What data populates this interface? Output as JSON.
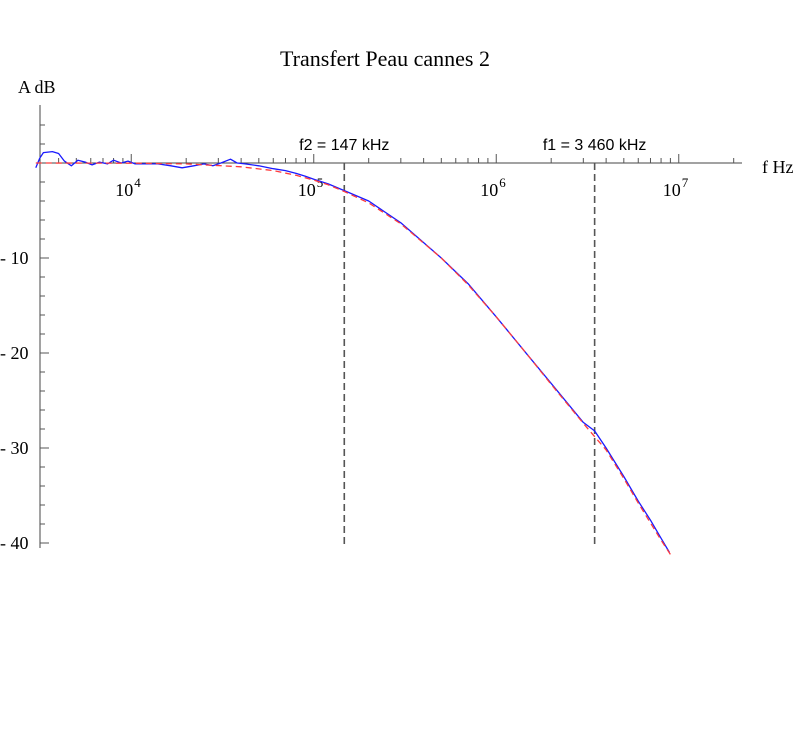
{
  "chart_data": {
    "type": "line",
    "title": "Transfert Peau cannes 2",
    "xlabel": "f Hz",
    "ylabel": "A dB",
    "xscale": "log",
    "xlim": [
      3000,
      20000000
    ],
    "ylim": [
      -41,
      6
    ],
    "grid": false,
    "x_tick_labels": [
      {
        "value": 10000,
        "base": "10",
        "exp": "4"
      },
      {
        "value": 100000,
        "base": "10",
        "exp": "5"
      },
      {
        "value": 1000000,
        "base": "10",
        "exp": "6"
      },
      {
        "value": 10000000,
        "base": "10",
        "exp": "7"
      }
    ],
    "y_ticks": [
      {
        "value": -10,
        "label": "- 10"
      },
      {
        "value": -20,
        "label": "- 20"
      },
      {
        "value": -30,
        "label": "- 30"
      },
      {
        "value": -40,
        "label": "- 40"
      }
    ],
    "vlines": [
      {
        "x": 147000,
        "label": "f2 = 147 kHz",
        "color": "#555555",
        "style": "dashed"
      },
      {
        "x": 3460000,
        "label": "f1 = 3 460 kHz",
        "color": "#555555",
        "style": "dashed"
      }
    ],
    "series": [
      {
        "color": "#1a1aff",
        "style": "solid",
        "points": [
          [
            3000,
            -0.5
          ],
          [
            3150,
            0.5
          ],
          [
            3300,
            1.1
          ],
          [
            3700,
            1.2
          ],
          [
            4000,
            1.0
          ],
          [
            4300,
            0.2
          ],
          [
            4700,
            -0.3
          ],
          [
            5100,
            0.3
          ],
          [
            5600,
            0.1
          ],
          [
            6100,
            -0.2
          ],
          [
            6700,
            0.1
          ],
          [
            7400,
            -0.1
          ],
          [
            8000,
            0.3
          ],
          [
            8800,
            0.0
          ],
          [
            9600,
            0.2
          ],
          [
            10500,
            -0.1
          ],
          [
            12000,
            -0.1
          ],
          [
            14000,
            -0.1
          ],
          [
            16500,
            -0.3
          ],
          [
            19000,
            -0.5
          ],
          [
            22000,
            -0.3
          ],
          [
            25000,
            -0.1
          ],
          [
            28000,
            -0.3
          ],
          [
            31000,
            0.0
          ],
          [
            35000,
            0.4
          ],
          [
            38000,
            0.0
          ],
          [
            42000,
            -0.1
          ],
          [
            50000,
            -0.3
          ],
          [
            60000,
            -0.6
          ],
          [
            70000,
            -0.8
          ],
          [
            80000,
            -1.1
          ],
          [
            90000,
            -1.4
          ],
          [
            100000,
            -1.7
          ],
          [
            120000,
            -2.2
          ],
          [
            147000,
            -2.9
          ],
          [
            200000,
            -4.0
          ],
          [
            300000,
            -6.3
          ],
          [
            500000,
            -10.0
          ],
          [
            700000,
            -12.7
          ],
          [
            1000000,
            -16.2
          ],
          [
            1500000,
            -20.3
          ],
          [
            2000000,
            -23.2
          ],
          [
            3000000,
            -27.3
          ],
          [
            3460000,
            -28.2
          ],
          [
            4000000,
            -30.0
          ],
          [
            5000000,
            -33.0
          ],
          [
            6000000,
            -35.6
          ],
          [
            7000000,
            -37.6
          ],
          [
            8000000,
            -39.5
          ],
          [
            8900000,
            -41.0
          ]
        ]
      },
      {
        "color": "#ff3b3b",
        "style": "dashed",
        "points": [
          [
            3000,
            0.0
          ],
          [
            10000,
            -0.02
          ],
          [
            20000,
            -0.1
          ],
          [
            40000,
            -0.4
          ],
          [
            60000,
            -0.8
          ],
          [
            80000,
            -1.3
          ],
          [
            100000,
            -1.8
          ],
          [
            120000,
            -2.3
          ],
          [
            147000,
            -3.0
          ],
          [
            200000,
            -4.2
          ],
          [
            300000,
            -6.4
          ],
          [
            500000,
            -10.0
          ],
          [
            700000,
            -12.8
          ],
          [
            1000000,
            -16.2
          ],
          [
            1500000,
            -20.3
          ],
          [
            2000000,
            -23.3
          ],
          [
            3000000,
            -27.4
          ],
          [
            3460000,
            -28.8
          ],
          [
            4000000,
            -30.2
          ],
          [
            5000000,
            -33.2
          ],
          [
            6000000,
            -35.8
          ],
          [
            7000000,
            -37.9
          ],
          [
            8000000,
            -39.7
          ],
          [
            9000000,
            -41.2
          ]
        ]
      }
    ]
  }
}
